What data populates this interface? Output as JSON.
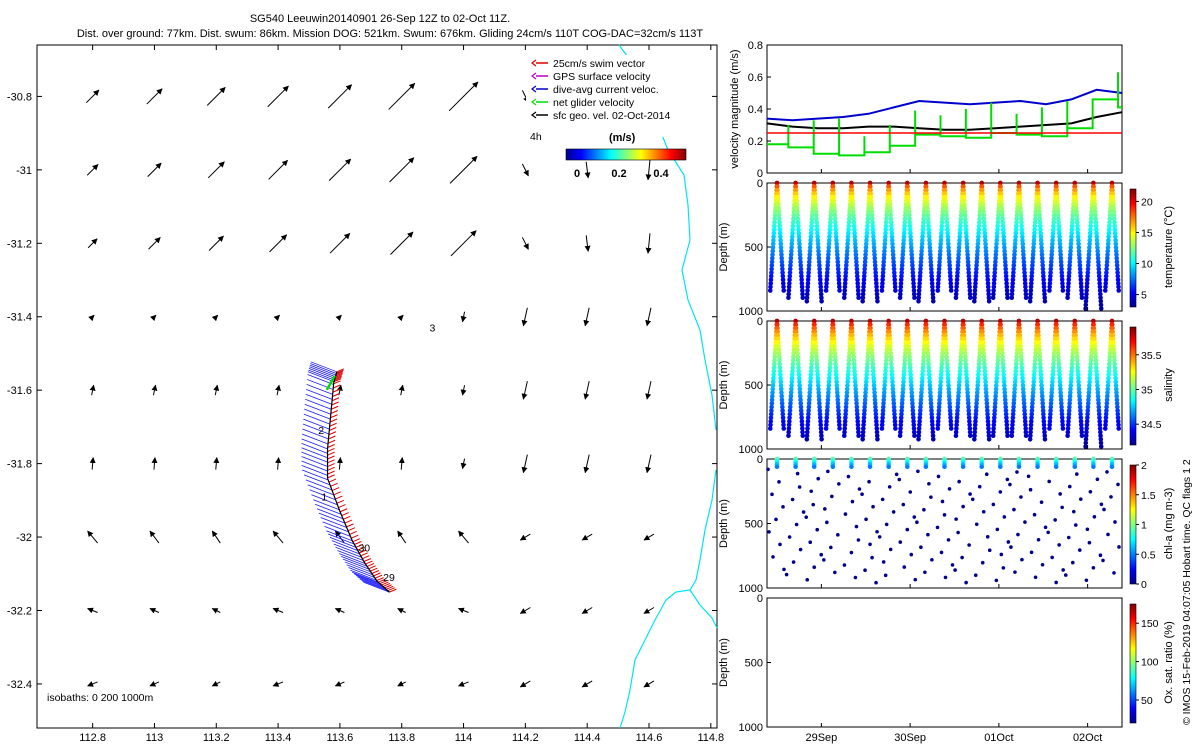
{
  "title": {
    "line1": "SG540 Leeuwin20140901 26-Sep 12Z to 02-Oct 11Z.",
    "line2": "Dist. over ground: 77km. Dist. swum: 86km. Mission DOG: 521km. Swum: 676km. Gliding 24cm/s 110T COG-DAC=32cm/s 113T"
  },
  "footer": {
    "isobaths": "isobaths: 0   200   1000m",
    "credit": "© IMOS 15-Feb-2019 04:07:05 Hobart time. QC flags 1  2"
  },
  "legend": {
    "items": [
      {
        "label": "25cm/s swim vector",
        "color": "#e00000"
      },
      {
        "label": "GPS surface velocity",
        "color": "#c000c0"
      },
      {
        "label": "dive-avg current veloc.",
        "color": "#0000cc"
      },
      {
        "label": "net glider velocity",
        "color": "#00dd00"
      },
      {
        "label": "sfc geo. vel. 02-Oct-2014",
        "color": "#000000"
      }
    ],
    "interval": "4h",
    "unit": "(m/s)",
    "ticks": [
      "0",
      "0.2",
      "0.4"
    ],
    "colormap": "jet"
  },
  "chart_data": [
    {
      "type": "map",
      "name": "glider track map",
      "xlim": [
        112.62,
        114.82
      ],
      "ylim": [
        -32.52,
        -30.66
      ],
      "xticks": [
        "112.8",
        "113",
        "113.2",
        "113.4",
        "113.6",
        "113.8",
        "114",
        "114.2",
        "114.4",
        "114.6",
        "114.8"
      ],
      "yticks": [
        "-30.8",
        "-31",
        "-31.2",
        "-31.4",
        "-31.6",
        "-31.8",
        "-32",
        "-32.2",
        "-32.4"
      ],
      "track": [
        [
          113.76,
          -32.15
        ],
        [
          113.72,
          -32.12
        ],
        [
          113.68,
          -32.07
        ],
        [
          113.64,
          -32.01
        ],
        [
          113.6,
          -31.93
        ],
        [
          113.56,
          -31.84
        ],
        [
          113.56,
          -31.76
        ],
        [
          113.57,
          -31.67
        ],
        [
          113.58,
          -31.58
        ],
        [
          113.59,
          -31.55
        ]
      ],
      "track_labels": [
        {
          "text": "29",
          "lon": 113.74,
          "lat": -32.12
        },
        {
          "text": "30",
          "lon": 113.66,
          "lat": -32.04
        },
        {
          "text": "1",
          "lon": 113.54,
          "lat": -31.9
        },
        {
          "text": "2",
          "lon": 113.53,
          "lat": -31.72
        },
        {
          "text": "3",
          "lon": 113.89,
          "lat": -31.44
        }
      ],
      "vector_field": {
        "lons": [
          112.8,
          113.0,
          113.2,
          113.4,
          113.6,
          113.8,
          114.0,
          114.2,
          114.4,
          114.6
        ],
        "lats": [
          -30.8,
          -31.0,
          -31.2,
          -31.4,
          -31.6,
          -31.8,
          -32.0,
          -32.2,
          -32.4
        ],
        "note": "geostrophic surface velocity arrows"
      }
    },
    {
      "type": "line",
      "name": "velocity magnitude",
      "ylabel": "velocity magnitude (m/s)",
      "ylim": [
        0,
        0.8
      ],
      "yticks": [
        "0",
        "0.2",
        "0.4",
        "0.6",
        "0.8"
      ],
      "x_days": [
        0,
        0.5,
        1,
        1.5,
        2,
        2.5,
        3,
        3.5,
        4,
        4.5,
        5,
        5.5,
        6,
        6.5,
        7
      ],
      "series": [
        {
          "color": "#0000cc",
          "values": [
            0.34,
            0.33,
            0.34,
            0.35,
            0.37,
            0.41,
            0.45,
            0.44,
            0.43,
            0.44,
            0.45,
            0.43,
            0.46,
            0.52,
            0.5
          ]
        },
        {
          "color": "#000000",
          "values": [
            0.31,
            0.29,
            0.28,
            0.28,
            0.29,
            0.29,
            0.28,
            0.27,
            0.27,
            0.28,
            0.29,
            0.3,
            0.31,
            0.35,
            0.38
          ]
        },
        {
          "color": "#00dd00",
          "values": [
            0.18,
            0.16,
            0.12,
            0.11,
            0.13,
            0.17,
            0.24,
            0.23,
            0.22,
            0.25,
            0.24,
            0.23,
            0.28,
            0.46,
            0.41
          ]
        },
        {
          "color": "#ff0000",
          "values": [
            0.25,
            0.25,
            0.25,
            0.25,
            0.25,
            0.25,
            0.25,
            0.25,
            0.25,
            0.25,
            0.25,
            0.25,
            0.25,
            0.25,
            0.25
          ]
        }
      ]
    },
    {
      "type": "scatter",
      "name": "temperature section",
      "ylabel": "Depth (m)",
      "ylim": [
        1000,
        0
      ],
      "yticks": [
        "0",
        "500",
        "1000"
      ],
      "colorbar": {
        "label": "temperature (°C)",
        "ticks": [
          "5",
          "10",
          "15",
          "20"
        ],
        "range": [
          3,
          22
        ]
      },
      "dives": 19,
      "max_depth": 1000
    },
    {
      "type": "scatter",
      "name": "salinity section",
      "ylabel": "Depth (m)",
      "ylim": [
        1000,
        0
      ],
      "yticks": [
        "0",
        "500",
        "1000"
      ],
      "colorbar": {
        "label": "salinity",
        "ticks": [
          "34.5",
          "35",
          "35.5"
        ],
        "range": [
          34.2,
          35.9
        ]
      },
      "dives": 19,
      "max_depth": 1000
    },
    {
      "type": "scatter",
      "name": "chl-a section",
      "ylabel": "Depth (m)",
      "ylim": [
        1000,
        0
      ],
      "yticks": [
        "0",
        "500",
        "1000"
      ],
      "colorbar": {
        "label": "chl-a (mg m-3)",
        "ticks": [
          "0",
          "0.5",
          "1",
          "1.5",
          "2"
        ],
        "range": [
          0,
          2
        ]
      }
    },
    {
      "type": "scatter",
      "name": "oxygen section",
      "ylabel": "Depth (m)",
      "ylim": [
        1000,
        0
      ],
      "yticks": [
        "0",
        "500",
        "1000"
      ],
      "colorbar": {
        "label": "Ox. sat. ratio (%)",
        "ticks": [
          "50",
          "100",
          "150"
        ],
        "range": [
          20,
          175
        ]
      },
      "xticks": [
        "29Sep",
        "30Sep",
        "01Oct",
        "02Oct"
      ]
    }
  ]
}
